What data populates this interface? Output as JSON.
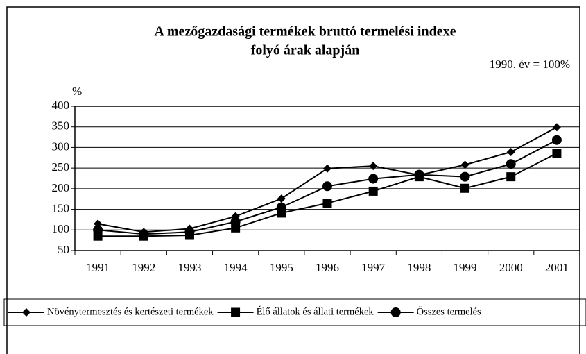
{
  "chart_data": {
    "type": "line",
    "title": "A mezőgazdasági termékek bruttó termelési indexe",
    "subtitle": "folyó árak alapján",
    "annotation": "1990. év = 100%",
    "y_label": "%",
    "categories": [
      "1991",
      "1992",
      "1993",
      "1994",
      "1995",
      "1996",
      "1997",
      "1998",
      "1999",
      "2000",
      "2001"
    ],
    "series": [
      {
        "name": "Növénytermesztés és kertészeti termékek",
        "color": "#000000",
        "marker": "diamond",
        "values": [
          115,
          95,
          103,
          133,
          176,
          249,
          255,
          233,
          258,
          289,
          349
        ]
      },
      {
        "name": "Élő állatok és állati termékek",
        "color": "#000000",
        "marker": "square",
        "values": [
          85,
          85,
          87,
          105,
          141,
          165,
          194,
          229,
          201,
          229,
          286
        ]
      },
      {
        "name": "Összes termelés",
        "color": "#000000",
        "marker": "circle",
        "values": [
          100,
          90,
          95,
          120,
          155,
          206,
          224,
          234,
          229,
          260,
          318
        ]
      }
    ],
    "ylim": [
      50,
      400
    ],
    "yticks": [
      50,
      100,
      150,
      200,
      250,
      300,
      350,
      400
    ],
    "grid": true,
    "legend": "bottom"
  }
}
